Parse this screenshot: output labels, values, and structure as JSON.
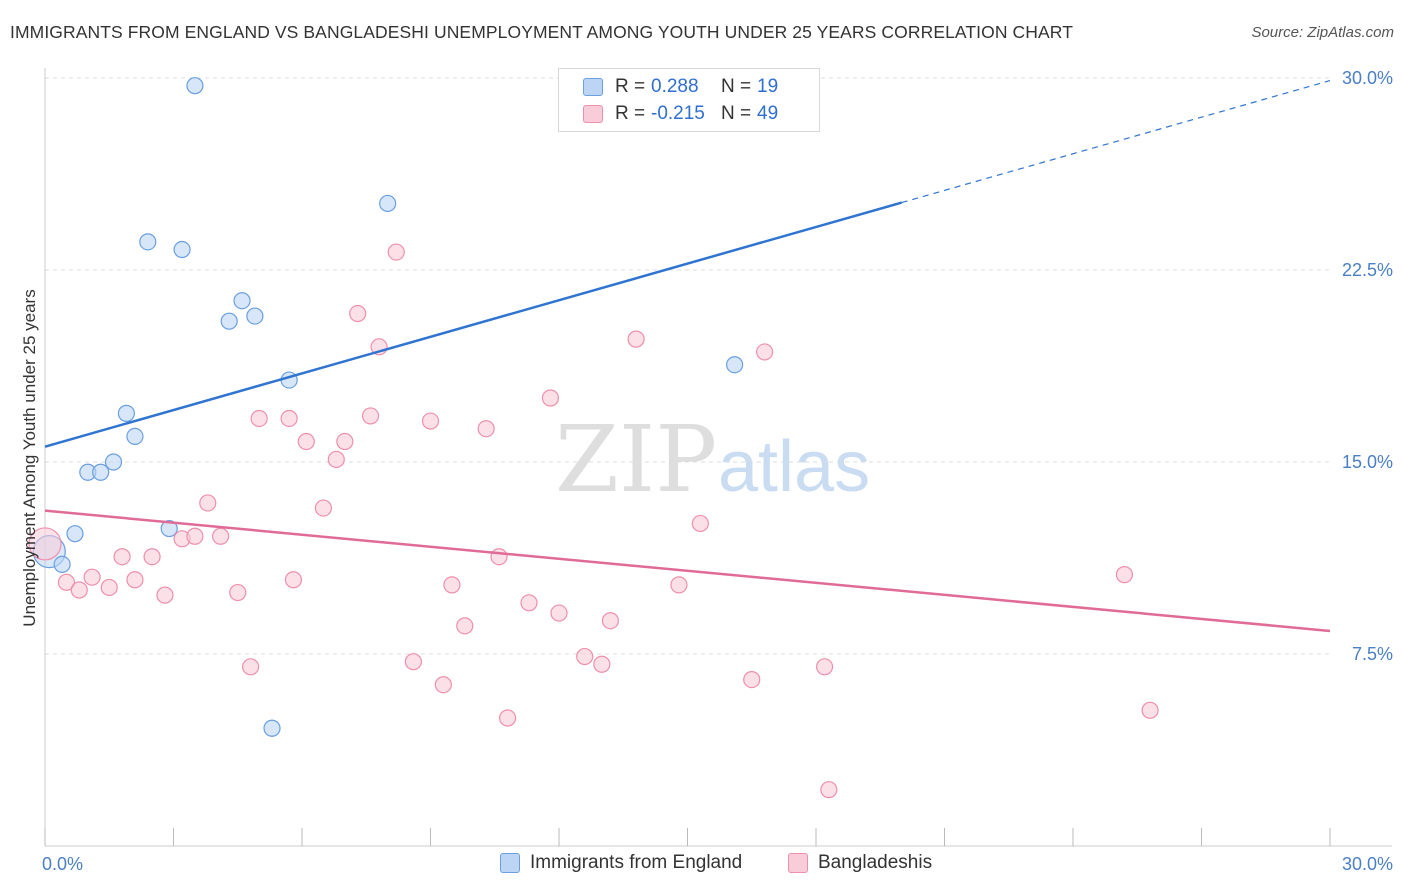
{
  "title": "IMMIGRANTS FROM ENGLAND VS BANGLADESHI UNEMPLOYMENT AMONG YOUTH UNDER 25 YEARS CORRELATION CHART",
  "source": "Source: ZipAtlas.com",
  "watermark": {
    "zip": "ZIP",
    "atlas": "atlas"
  },
  "legend": {
    "r_label": "R =",
    "n_label": "N =",
    "series": [
      {
        "r": "0.288",
        "n": "19",
        "color": "#a9c8f0",
        "border": "#6a9fe0"
      },
      {
        "r": "-0.215",
        "n": "49",
        "color": "#f9c3d3",
        "border": "#ee8fad"
      }
    ]
  },
  "bottom_legend": [
    "Immigrants from England",
    "Bangladeshis"
  ],
  "chart_data": {
    "type": "scatter",
    "title": "IMMIGRANTS FROM ENGLAND VS BANGLADESHI UNEMPLOYMENT AMONG YOUTH UNDER 25 YEARS CORRELATION CHART",
    "xlabel": "",
    "ylabel": "Unemployment Among Youth under 25 years",
    "xlim": [
      0,
      30
    ],
    "ylim": [
      0,
      30
    ],
    "x_tick_labels": [
      "0.0%",
      "30.0%"
    ],
    "y_ticks": [
      7.5,
      15.0,
      22.5,
      30.0
    ],
    "y_tick_labels": [
      "7.5%",
      "15.0%",
      "22.5%",
      "30.0%"
    ],
    "grid": "horizontal dashed",
    "legend_position": "top-center",
    "series": [
      {
        "name": "Immigrants from England",
        "color": "#6a9fe0",
        "fill": "#bcd5f5",
        "points": [
          [
            0.1,
            11.5
          ],
          [
            0.4,
            11.0
          ],
          [
            0.7,
            12.2
          ],
          [
            1.0,
            14.6
          ],
          [
            1.3,
            14.6
          ],
          [
            1.6,
            15.0
          ],
          [
            1.9,
            16.9
          ],
          [
            2.1,
            16.0
          ],
          [
            2.4,
            23.6
          ],
          [
            2.9,
            12.4
          ],
          [
            3.2,
            23.3
          ],
          [
            3.5,
            29.7
          ],
          [
            4.3,
            20.5
          ],
          [
            4.6,
            21.3
          ],
          [
            4.9,
            20.7
          ],
          [
            5.3,
            4.6
          ],
          [
            5.7,
            18.2
          ],
          [
            8.0,
            25.1
          ],
          [
            16.1,
            18.8
          ]
        ],
        "trend": {
          "x": [
            0,
            30
          ],
          "y": [
            15.6,
            29.9
          ],
          "solid_until_x": 20.0
        }
      },
      {
        "name": "Bangladeshis",
        "color": "#ee8fad",
        "fill": "#f9ccd9",
        "points": [
          [
            0.0,
            11.8
          ],
          [
            0.5,
            10.3
          ],
          [
            0.8,
            10.0
          ],
          [
            1.1,
            10.5
          ],
          [
            1.5,
            10.1
          ],
          [
            1.8,
            11.3
          ],
          [
            2.1,
            10.4
          ],
          [
            2.5,
            11.3
          ],
          [
            2.8,
            9.8
          ],
          [
            3.2,
            12.0
          ],
          [
            3.5,
            12.1
          ],
          [
            3.8,
            13.4
          ],
          [
            4.1,
            12.1
          ],
          [
            4.5,
            9.9
          ],
          [
            4.8,
            7.0
          ],
          [
            5.0,
            16.7
          ],
          [
            5.7,
            16.7
          ],
          [
            5.8,
            10.4
          ],
          [
            6.1,
            15.8
          ],
          [
            6.5,
            13.2
          ],
          [
            6.8,
            15.1
          ],
          [
            7.0,
            15.8
          ],
          [
            7.3,
            20.8
          ],
          [
            7.6,
            16.8
          ],
          [
            7.8,
            19.5
          ],
          [
            8.2,
            23.2
          ],
          [
            8.6,
            7.2
          ],
          [
            9.0,
            16.6
          ],
          [
            9.3,
            6.3
          ],
          [
            9.5,
            10.2
          ],
          [
            9.8,
            8.6
          ],
          [
            10.3,
            16.3
          ],
          [
            10.6,
            11.3
          ],
          [
            10.8,
            5.0
          ],
          [
            11.3,
            9.5
          ],
          [
            11.8,
            17.5
          ],
          [
            12.0,
            9.1
          ],
          [
            12.6,
            7.4
          ],
          [
            13.0,
            7.1
          ],
          [
            13.2,
            8.8
          ],
          [
            13.8,
            19.8
          ],
          [
            14.8,
            10.2
          ],
          [
            15.3,
            12.6
          ],
          [
            16.5,
            6.5
          ],
          [
            16.8,
            19.3
          ],
          [
            18.2,
            7.0
          ],
          [
            18.3,
            2.2
          ],
          [
            25.2,
            10.6
          ],
          [
            25.8,
            5.3
          ]
        ],
        "trend": {
          "x": [
            0,
            30
          ],
          "y": [
            13.1,
            8.4
          ]
        }
      }
    ]
  }
}
